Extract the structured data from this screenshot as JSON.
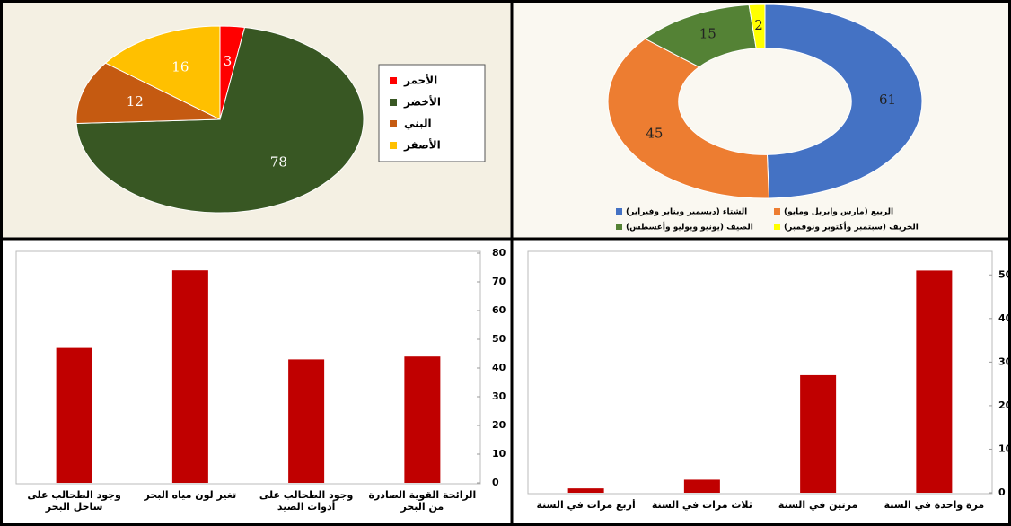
{
  "chart_data": [
    {
      "type": "pie",
      "categories": [
        "الأحمر",
        "الأخضر",
        "البني",
        "الأصفر"
      ],
      "values": [
        3,
        78,
        12,
        16
      ],
      "colors": [
        "#ff0000",
        "#385723",
        "#c55a11",
        "#ffc000"
      ],
      "legend": "right"
    },
    {
      "type": "donut",
      "categories": [
        "الشتاء (ديسمبر ويناير وفبراير)",
        "الربيع (مارس وابريل ومايو)",
        "الصيف (يونيو ويوليو وأغسطس)",
        "الخريف (سبتمبر وأكتوبر ونوفمبر)"
      ],
      "values": [
        61,
        45,
        15,
        2
      ],
      "colors": [
        "#4472c4",
        "#ed7d31",
        "#548235",
        "#ffff00"
      ],
      "legend": "bottom"
    },
    {
      "type": "bar",
      "categories": [
        "وجود الطحالب على ساحل البحر",
        "تغير لون مياه البحر",
        "وجود الطحالب على أدوات الصيد",
        "الرائحة القوية الصادرة من البحر"
      ],
      "values": [
        47,
        74,
        43,
        44
      ],
      "color": "#c00000",
      "ylim": [
        0,
        80
      ],
      "yticks": [
        0,
        10,
        20,
        30,
        40,
        50,
        60,
        70,
        80
      ]
    },
    {
      "type": "bar",
      "categories": [
        "أربع مرات في السنة",
        "ثلاث مرات في السنة",
        "مرتين في السنة",
        "مرة واحدة في السنة"
      ],
      "values": [
        1,
        3,
        27,
        51
      ],
      "color": "#c00000",
      "ylim": [
        0,
        55
      ],
      "yticks": [
        0,
        10,
        20,
        30,
        40,
        50
      ]
    }
  ]
}
